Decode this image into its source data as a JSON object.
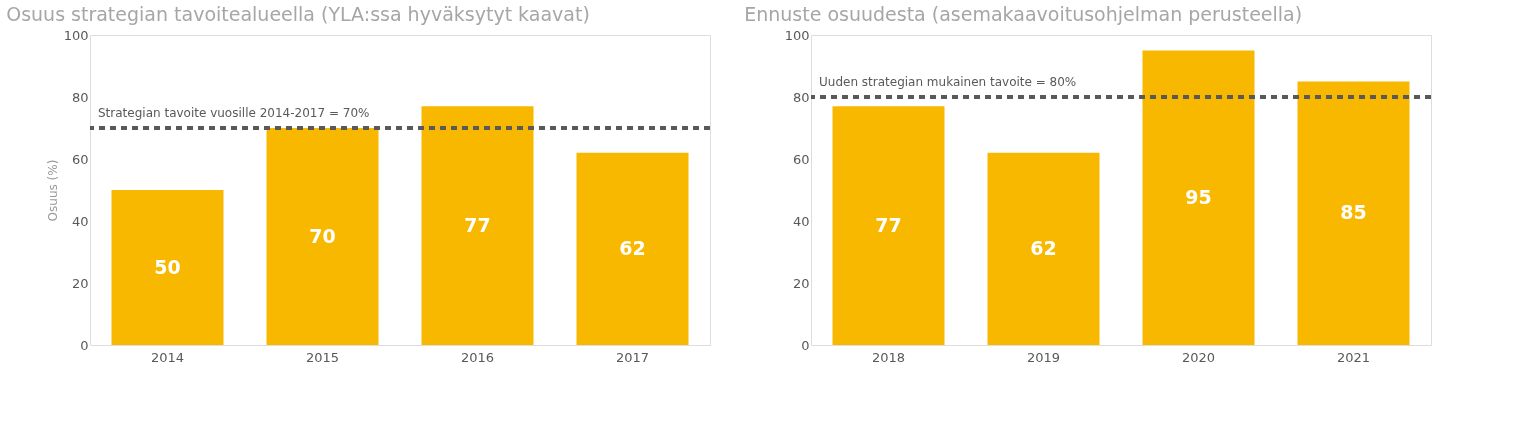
{
  "chart_data": [
    {
      "type": "bar",
      "title": "Osuus strategian tavoitealueella (YLA:ssa hyväksytyt kaavat)",
      "ylabel": "Osuus (%)",
      "categories": [
        "2014",
        "2015",
        "2016",
        "2017"
      ],
      "series": [
        {
          "color": "#f9b800",
          "values": [
            50,
            70,
            77,
            62
          ]
        }
      ],
      "ylim": [
        0,
        100
      ],
      "yticks": [
        0,
        20,
        40,
        60,
        80,
        100
      ],
      "grid": false,
      "data_labels": true,
      "ref_lines": [
        {
          "axis": "y",
          "value": 70,
          "label": "Strategian tavoite vuosille 2014-2017 = 70%",
          "color": "#595959",
          "line_style": "dashed"
        }
      ]
    },
    {
      "type": "bar",
      "title": "Ennuste osuudesta (asemakaavoitusohjelman perusteella)",
      "categories": [
        "2018",
        "2019",
        "2020",
        "2021"
      ],
      "series": [
        {
          "color": "#f9b800",
          "values": [
            77,
            62,
            95,
            85
          ]
        }
      ],
      "ylim": [
        0,
        100
      ],
      "yticks": [
        0,
        20,
        40,
        60,
        80,
        100
      ],
      "grid": false,
      "data_labels": true,
      "ref_lines": [
        {
          "axis": "y",
          "value": 80,
          "label": "Uuden strategian mukainen tavoite = 80%",
          "color": "#595959",
          "line_style": "dashed"
        }
      ]
    }
  ]
}
